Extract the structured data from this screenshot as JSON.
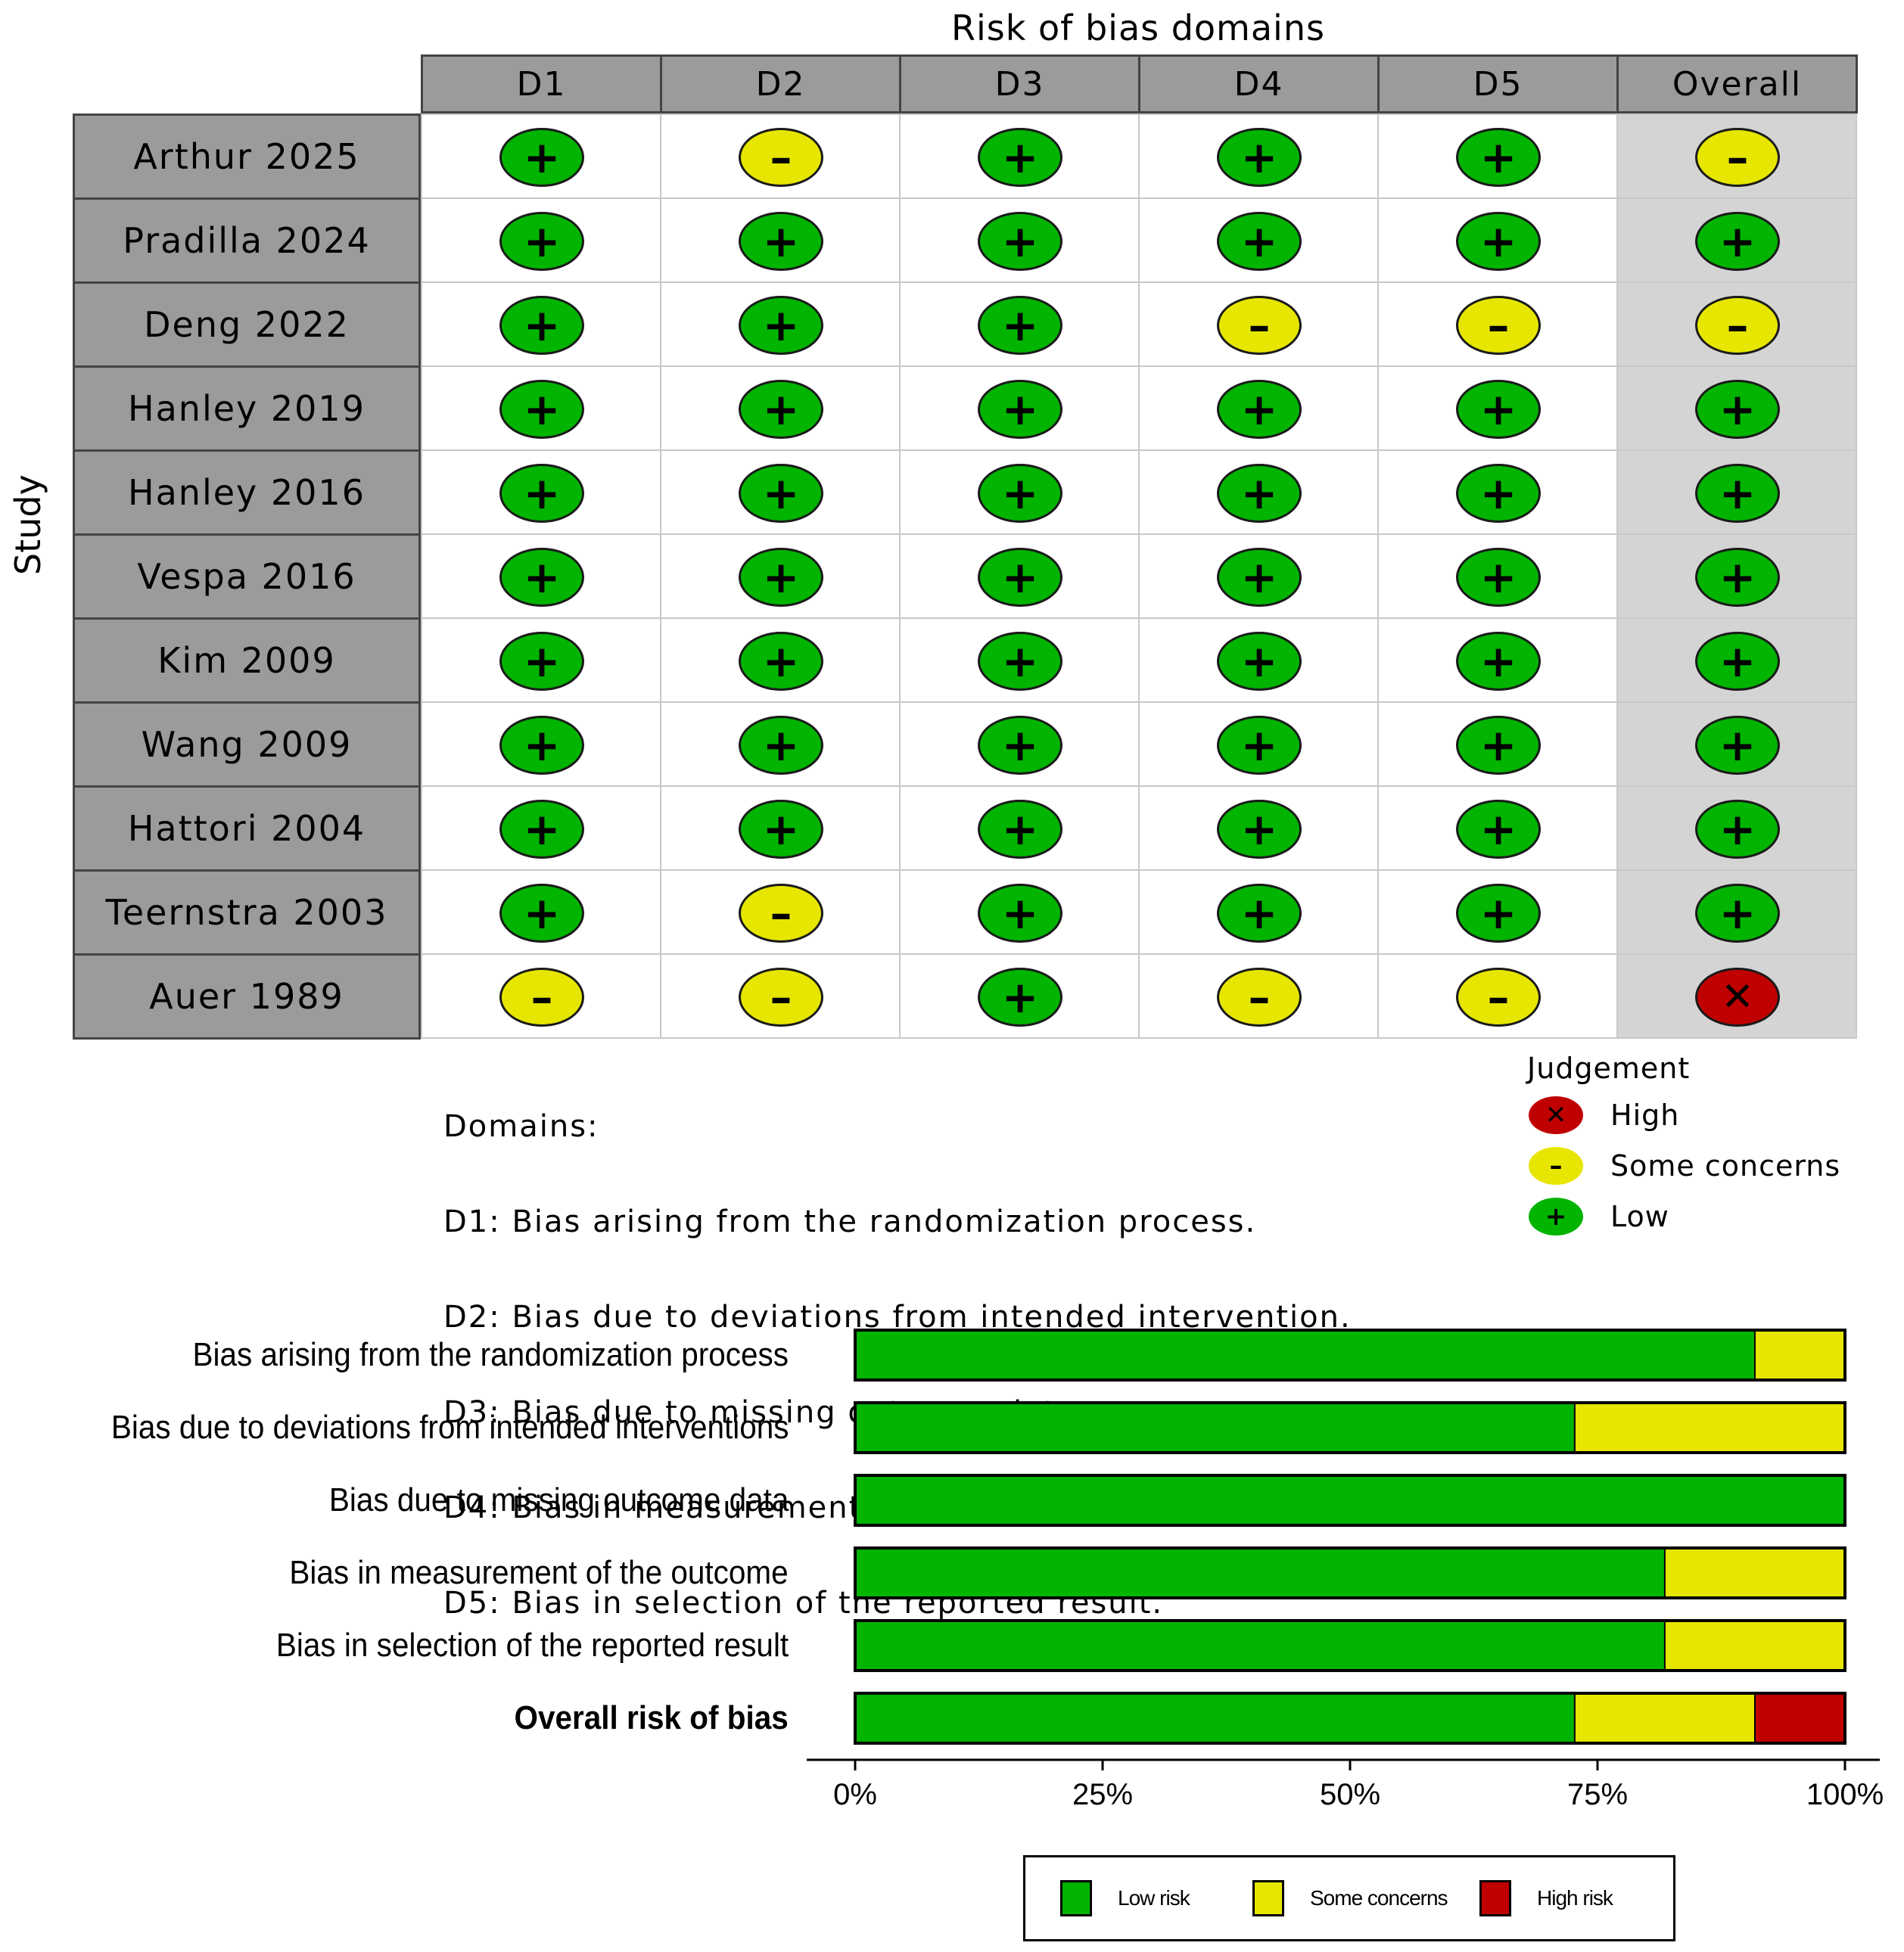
{
  "chart_data": [
    {
      "type": "table",
      "title": "Risk of bias domains",
      "ylabel": "Study",
      "columns": [
        "D1",
        "D2",
        "D3",
        "D4",
        "D5",
        "Overall"
      ],
      "rows": [
        {
          "study": "Arthur 2025",
          "judgements": [
            "low",
            "some",
            "low",
            "low",
            "low",
            "some"
          ]
        },
        {
          "study": "Pradilla 2024",
          "judgements": [
            "low",
            "low",
            "low",
            "low",
            "low",
            "low"
          ]
        },
        {
          "study": "Deng 2022",
          "judgements": [
            "low",
            "low",
            "low",
            "some",
            "some",
            "some"
          ]
        },
        {
          "study": "Hanley 2019",
          "judgements": [
            "low",
            "low",
            "low",
            "low",
            "low",
            "low"
          ]
        },
        {
          "study": "Hanley 2016",
          "judgements": [
            "low",
            "low",
            "low",
            "low",
            "low",
            "low"
          ]
        },
        {
          "study": "Vespa 2016",
          "judgements": [
            "low",
            "low",
            "low",
            "low",
            "low",
            "low"
          ]
        },
        {
          "study": "Kim 2009",
          "judgements": [
            "low",
            "low",
            "low",
            "low",
            "low",
            "low"
          ]
        },
        {
          "study": "Wang 2009",
          "judgements": [
            "low",
            "low",
            "low",
            "low",
            "low",
            "low"
          ]
        },
        {
          "study": "Hattori 2004",
          "judgements": [
            "low",
            "low",
            "low",
            "low",
            "low",
            "low"
          ]
        },
        {
          "study": "Teernstra 2003",
          "judgements": [
            "low",
            "some",
            "low",
            "low",
            "low",
            "low"
          ]
        },
        {
          "study": "Auer 1989",
          "judgements": [
            "some",
            "some",
            "low",
            "some",
            "some",
            "high"
          ]
        }
      ],
      "domains_heading": "Domains:",
      "domains": [
        "D1: Bias arising from the randomization process.",
        "D2: Bias due to deviations from intended intervention.",
        "D3: Bias due to missing outcome data.",
        "D4: Bias in measurement of the outcome.",
        "D5: Bias in selection of the reported result."
      ],
      "judgement_title": "Judgement",
      "judgement_legend": [
        {
          "key": "high",
          "label": "High",
          "symbol": "X"
        },
        {
          "key": "some",
          "label": "Some concerns",
          "symbol": "-"
        },
        {
          "key": "low",
          "label": "Low",
          "symbol": "+"
        }
      ]
    },
    {
      "type": "bar",
      "stacked": true,
      "orientation": "horizontal",
      "categories": [
        "Bias arising from the randomization process",
        "Bias due to deviations from intended interventions",
        "Bias due to missing outcome data",
        "Bias in measurement of the outcome",
        "Bias in selection of the reported result",
        "Overall risk of bias"
      ],
      "bold_categories": [
        "Overall risk of bias"
      ],
      "series": [
        {
          "name": "Low risk",
          "color": "#00b400",
          "values": [
            90.9,
            72.7,
            100,
            81.8,
            81.8,
            72.7
          ]
        },
        {
          "name": "Some concerns",
          "color": "#e6e600",
          "values": [
            9.1,
            27.3,
            0,
            18.2,
            18.2,
            18.2
          ]
        },
        {
          "name": "High risk",
          "color": "#c00000",
          "values": [
            0,
            0,
            0,
            0,
            0,
            9.1
          ]
        }
      ],
      "xticks": [
        "0%",
        "25%",
        "50%",
        "75%",
        "100%"
      ],
      "xlim": [
        0,
        100
      ]
    }
  ],
  "colors": {
    "low": "#00b400",
    "some": "#e6e600",
    "high": "#c00000",
    "header": "#9b9b9b",
    "overall_bg": "#d4d4d4"
  }
}
